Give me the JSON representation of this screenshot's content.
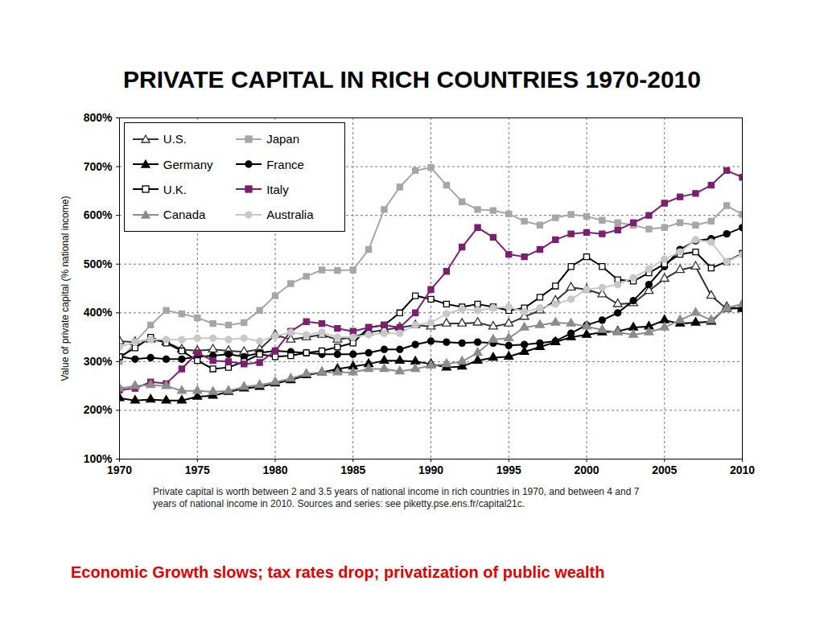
{
  "chart_data": {
    "type": "line",
    "title": "PRIVATE CAPITAL IN RICH COUNTRIES 1970-2010",
    "y_label": "Value of private capital (% national income)",
    "caption": "Private capital is worth between 2 and 3.5 years of national income in rich countries in 1970, and between 4 and 7 years of national income in 2010. Sources and series: see piketty.pse.ens.fr/capital21c.",
    "annotation": "Economic Growth slows; tax rates drop; privatization of public wealth",
    "x": [
      1970,
      1971,
      1972,
      1973,
      1974,
      1975,
      1976,
      1977,
      1978,
      1979,
      1980,
      1981,
      1982,
      1983,
      1984,
      1985,
      1986,
      1987,
      1988,
      1989,
      1990,
      1991,
      1992,
      1993,
      1994,
      1995,
      1996,
      1997,
      1998,
      1999,
      2000,
      2001,
      2002,
      2003,
      2004,
      2005,
      2006,
      2007,
      2008,
      2009,
      2010
    ],
    "xlim": [
      1970,
      2010
    ],
    "xticks": [
      1970,
      1975,
      1980,
      1985,
      1990,
      1995,
      2000,
      2005,
      2010
    ],
    "ylim": [
      100,
      800
    ],
    "yticks": [
      {
        "value": 100,
        "label": "100%"
      },
      {
        "value": 200,
        "label": "200%"
      },
      {
        "value": 300,
        "label": "300%"
      },
      {
        "value": 400,
        "label": "400%"
      },
      {
        "value": 500,
        "label": "500%"
      },
      {
        "value": 600,
        "label": "600%"
      },
      {
        "value": 700,
        "label": "700%"
      },
      {
        "value": 800,
        "label": "800%"
      }
    ],
    "grid": true,
    "legend": "top-left",
    "series": [
      {
        "name": "U.S.",
        "color": "#333333",
        "marker": "triangle_open",
        "values": [
          342,
          340,
          345,
          340,
          325,
          322,
          325,
          322,
          320,
          325,
          355,
          345,
          350,
          355,
          345,
          350,
          360,
          365,
          370,
          375,
          372,
          378,
          378,
          380,
          372,
          378,
          392,
          405,
          425,
          452,
          448,
          438,
          418,
          420,
          445,
          470,
          488,
          495,
          435,
          408,
          410
        ]
      },
      {
        "name": "Japan",
        "color": "#a6a6a6",
        "marker": "square",
        "values": [
          300,
          340,
          375,
          405,
          398,
          390,
          378,
          375,
          380,
          405,
          435,
          460,
          475,
          488,
          487,
          488,
          530,
          612,
          658,
          692,
          698,
          662,
          628,
          612,
          610,
          603,
          588,
          580,
          595,
          602,
          598,
          590,
          585,
          580,
          572,
          575,
          585,
          580,
          588,
          620,
          602
        ]
      },
      {
        "name": "Germany",
        "color": "#000000",
        "marker": "triangle",
        "values": [
          225,
          220,
          222,
          220,
          220,
          228,
          230,
          238,
          245,
          248,
          255,
          262,
          272,
          278,
          285,
          290,
          295,
          302,
          302,
          300,
          295,
          288,
          290,
          302,
          308,
          310,
          320,
          330,
          340,
          350,
          355,
          360,
          362,
          370,
          372,
          385,
          378,
          380,
          382,
          412,
          408
        ]
      },
      {
        "name": "France",
        "color": "#000000",
        "marker": "circle",
        "values": [
          310,
          305,
          308,
          305,
          305,
          310,
          312,
          315,
          310,
          318,
          322,
          320,
          318,
          315,
          315,
          315,
          318,
          325,
          325,
          335,
          342,
          340,
          338,
          340,
          338,
          333,
          335,
          338,
          342,
          358,
          375,
          385,
          400,
          425,
          458,
          495,
          530,
          548,
          552,
          562,
          575
        ]
      },
      {
        "name": "U.K.",
        "color": "#000000",
        "marker": "square_open",
        "values": [
          310,
          328,
          350,
          338,
          322,
          302,
          285,
          288,
          300,
          315,
          310,
          312,
          318,
          322,
          330,
          338,
          370,
          375,
          400,
          435,
          428,
          418,
          412,
          418,
          412,
          405,
          410,
          432,
          455,
          495,
          515,
          495,
          468,
          465,
          482,
          500,
          520,
          525,
          492,
          505,
          522
        ]
      },
      {
        "name": "Italy",
        "color": "#7b1f6e",
        "marker": "square",
        "values": [
          242,
          245,
          258,
          255,
          285,
          318,
          302,
          300,
          295,
          298,
          322,
          362,
          382,
          378,
          368,
          362,
          370,
          375,
          370,
          400,
          448,
          485,
          535,
          575,
          555,
          520,
          515,
          530,
          550,
          562,
          565,
          562,
          570,
          585,
          600,
          625,
          638,
          645,
          662,
          692,
          678
        ]
      },
      {
        "name": "Canada",
        "color": "#8c8c8c",
        "marker": "triangle",
        "values": [
          245,
          250,
          252,
          250,
          240,
          240,
          238,
          240,
          248,
          252,
          258,
          265,
          275,
          278,
          278,
          278,
          285,
          285,
          280,
          285,
          292,
          295,
          300,
          318,
          345,
          348,
          370,
          375,
          380,
          378,
          372,
          365,
          360,
          355,
          360,
          370,
          385,
          400,
          385,
          410,
          418
        ]
      },
      {
        "name": "Australia",
        "color": "#c8c8c8",
        "marker": "circle",
        "values": [
          330,
          340,
          345,
          345,
          345,
          348,
          348,
          345,
          348,
          342,
          352,
          360,
          355,
          360,
          350,
          350,
          355,
          358,
          358,
          375,
          380,
          398,
          408,
          405,
          410,
          412,
          402,
          410,
          418,
          428,
          448,
          452,
          458,
          472,
          490,
          510,
          525,
          550,
          545,
          505,
          520
        ]
      }
    ]
  }
}
